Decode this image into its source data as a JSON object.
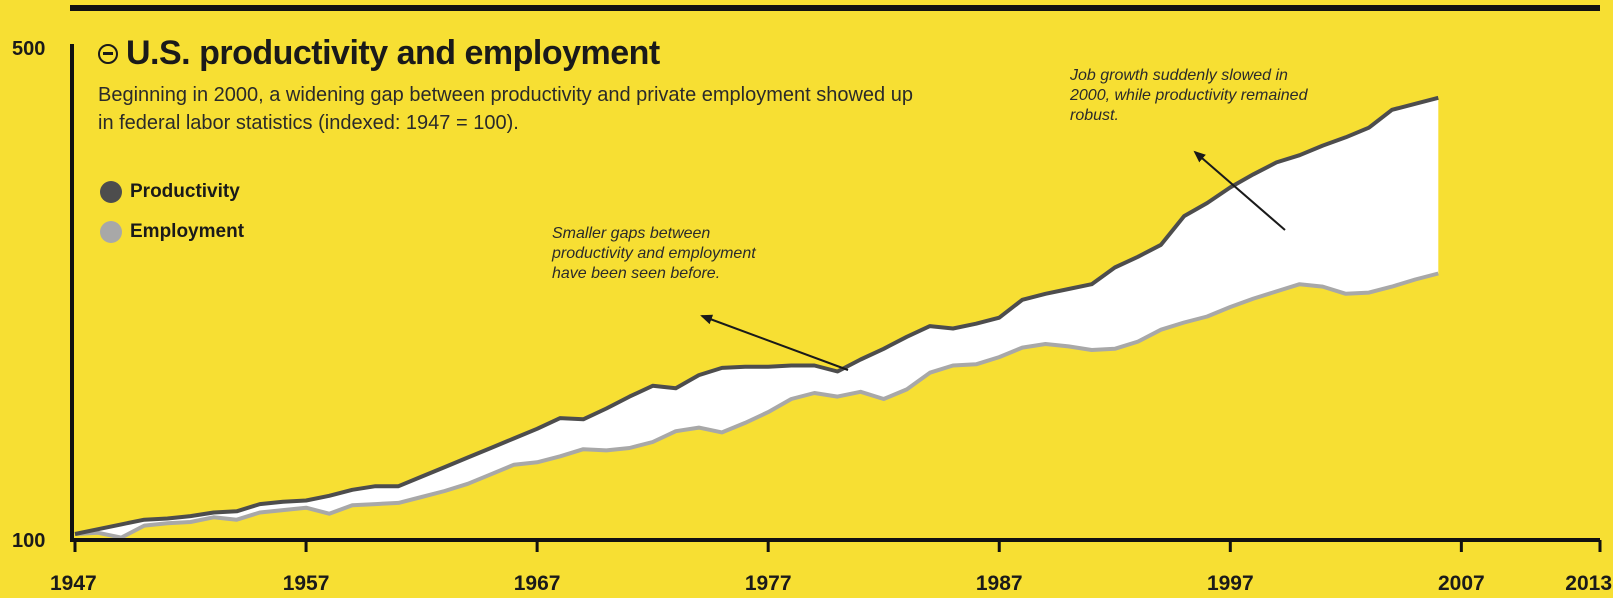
{
  "chart_data": {
    "type": "area",
    "title": "U.S. productivity and employment",
    "subtitle": "Beginning in 2000, a widening gap between productivity and private employment showed up in federal labor statistics (indexed: 1947 = 100).",
    "xlabel": "",
    "ylabel": "",
    "xlim": [
      1947,
      2013
    ],
    "ylim": [
      100,
      500
    ],
    "x_ticks": [
      "1947",
      "1957",
      "1967",
      "1977",
      "1987",
      "1997",
      "2007",
      "2013"
    ],
    "y_ticks": [
      "100",
      "500"
    ],
    "legend_position": "left",
    "grid": false,
    "series": [
      {
        "name": "Productivity",
        "color": "#4d4d4d",
        "points": [
          [
            1947,
            100
          ],
          [
            1948,
            104
          ],
          [
            1949,
            108
          ],
          [
            1950,
            112
          ],
          [
            1951,
            113
          ],
          [
            1952,
            115
          ],
          [
            1953,
            118
          ],
          [
            1954,
            119
          ],
          [
            1955,
            125
          ],
          [
            1956,
            127
          ],
          [
            1957,
            128
          ],
          [
            1958,
            132
          ],
          [
            1959,
            137
          ],
          [
            1960,
            140
          ],
          [
            1961,
            140
          ],
          [
            1962,
            148
          ],
          [
            1963,
            156
          ],
          [
            1964,
            164
          ],
          [
            1965,
            172
          ],
          [
            1966,
            180
          ],
          [
            1967,
            188
          ],
          [
            1968,
            197
          ],
          [
            1969,
            196
          ],
          [
            1970,
            205
          ],
          [
            1971,
            215
          ],
          [
            1972,
            224
          ],
          [
            1973,
            222
          ],
          [
            1974,
            233
          ],
          [
            1975,
            239
          ],
          [
            1976,
            240
          ],
          [
            1977,
            240
          ],
          [
            1978,
            241
          ],
          [
            1979,
            241
          ],
          [
            1980,
            236
          ],
          [
            1981,
            246
          ],
          [
            1982,
            255
          ],
          [
            1983,
            265
          ],
          [
            1984,
            274
          ],
          [
            1985,
            272
          ],
          [
            1986,
            276
          ],
          [
            1987,
            281
          ],
          [
            1988,
            296
          ],
          [
            1989,
            301
          ],
          [
            1990,
            305
          ],
          [
            1991,
            309
          ],
          [
            1992,
            323
          ],
          [
            1993,
            332
          ],
          [
            1994,
            342
          ],
          [
            1995,
            366
          ],
          [
            1996,
            377
          ],
          [
            1997,
            390
          ],
          [
            1998,
            401
          ],
          [
            1999,
            411
          ],
          [
            2000,
            417
          ],
          [
            2001,
            425
          ],
          [
            2002,
            432
          ],
          [
            2003,
            440
          ],
          [
            2004,
            455
          ],
          [
            2005,
            460
          ],
          [
            2006,
            465
          ]
        ]
      },
      {
        "name": "Employment",
        "color": "#a8a8a8",
        "points": [
          [
            1947,
            100
          ],
          [
            1948,
            101
          ],
          [
            1949,
            97
          ],
          [
            1950,
            107
          ],
          [
            1951,
            109
          ],
          [
            1952,
            110
          ],
          [
            1953,
            114
          ],
          [
            1954,
            112
          ],
          [
            1955,
            118
          ],
          [
            1956,
            120
          ],
          [
            1957,
            122
          ],
          [
            1958,
            117
          ],
          [
            1959,
            124
          ],
          [
            1960,
            125
          ],
          [
            1961,
            126
          ],
          [
            1962,
            131
          ],
          [
            1963,
            136
          ],
          [
            1964,
            142
          ],
          [
            1965,
            150
          ],
          [
            1966,
            158
          ],
          [
            1967,
            160
          ],
          [
            1968,
            165
          ],
          [
            1969,
            171
          ],
          [
            1970,
            170
          ],
          [
            1971,
            172
          ],
          [
            1972,
            177
          ],
          [
            1973,
            186
          ],
          [
            1974,
            189
          ],
          [
            1975,
            185
          ],
          [
            1976,
            193
          ],
          [
            1977,
            202
          ],
          [
            1978,
            213
          ],
          [
            1979,
            218
          ],
          [
            1980,
            215
          ],
          [
            1981,
            219
          ],
          [
            1982,
            213
          ],
          [
            1983,
            221
          ],
          [
            1984,
            235
          ],
          [
            1985,
            241
          ],
          [
            1986,
            242
          ],
          [
            1987,
            248
          ],
          [
            1988,
            256
          ],
          [
            1989,
            259
          ],
          [
            1990,
            257
          ],
          [
            1991,
            254
          ],
          [
            1992,
            255
          ],
          [
            1993,
            261
          ],
          [
            1994,
            271
          ],
          [
            1995,
            277
          ],
          [
            1996,
            282
          ],
          [
            1997,
            290
          ],
          [
            1998,
            297
          ],
          [
            1999,
            303
          ],
          [
            2000,
            309
          ],
          [
            2001,
            307
          ],
          [
            2002,
            301
          ],
          [
            2003,
            302
          ],
          [
            2004,
            307
          ],
          [
            2005,
            313
          ],
          [
            2006,
            318
          ]
        ]
      }
    ],
    "annotations": [
      "Smaller gaps between productivity and employment have been seen before.",
      "Job growth suddenly slowed in 2000, while productivity remained robust."
    ]
  }
}
